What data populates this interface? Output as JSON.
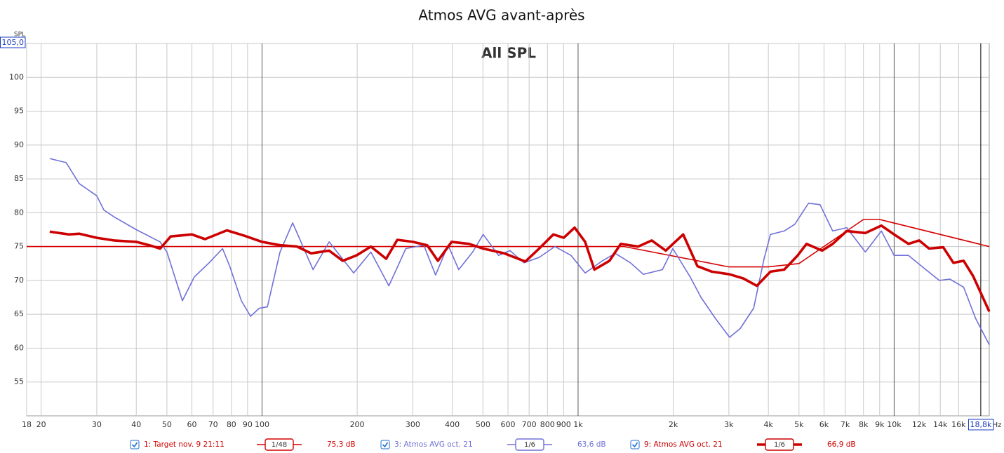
{
  "chart_data": {
    "type": "line",
    "title": "Atmos AVG avant-après",
    "annotation": "All SPL",
    "ylabel": "SPL",
    "xlabel": "Hz",
    "xscale": "log",
    "grid": true,
    "xlim": [
      18,
      20000
    ],
    "ylim": [
      50,
      105
    ],
    "yticks": [
      55,
      60,
      65,
      70,
      75,
      80,
      85,
      90,
      95,
      100,
      {
        "value": 105,
        "label": "105,0"
      }
    ],
    "xticks": [
      18,
      20,
      30,
      40,
      50,
      60,
      70,
      80,
      90,
      100,
      200,
      300,
      400,
      500,
      600,
      700,
      800,
      900,
      {
        "value": 1000,
        "label": "1k"
      },
      {
        "value": 2000,
        "label": "2k"
      },
      {
        "value": 3000,
        "label": "3k"
      },
      {
        "value": 4000,
        "label": "4k"
      },
      {
        "value": 5000,
        "label": "5k"
      },
      {
        "value": 6000,
        "label": "6k"
      },
      {
        "value": 7000,
        "label": "7k"
      },
      {
        "value": 8000,
        "label": "8k"
      },
      {
        "value": 9000,
        "label": "9k"
      },
      {
        "value": 10000,
        "label": "10k"
      },
      {
        "value": 12000,
        "label": "12k"
      },
      {
        "value": 14000,
        "label": "14k"
      },
      {
        "value": 16000,
        "label": "16k"
      },
      {
        "value": 18800,
        "label": "18,8k"
      }
    ],
    "series": [
      {
        "name": "1: Target nov. 9 21:11",
        "smoothing": "1/48",
        "level": "75,3 dB",
        "color": "#d40000",
        "width": 1.6,
        "x": [
          18,
          1400,
          3000,
          4000,
          5000,
          8000,
          9000,
          20000
        ],
        "values": [
          75,
          75,
          72,
          72,
          72.5,
          79,
          79,
          75
        ]
      },
      {
        "name": "3: Atmos AVG oct. 21",
        "smoothing": "1/6",
        "level": "63,6 dB",
        "color": "#7070d8",
        "width": 1.6,
        "x": [
          21.3,
          24,
          26.4,
          30,
          31.6,
          34,
          40,
          47.6,
          50,
          52.5,
          56,
          61,
          68,
          75,
          79,
          86,
          92,
          98,
          104,
          114,
          125,
          145,
          163,
          195,
          221,
          252,
          285,
          325,
          354,
          388,
          419,
          464,
          501,
          560,
          609,
          674,
          753,
          844,
          950,
          1053,
          1194,
          1310,
          1465,
          1609,
          1848,
          1995,
          2264,
          2448,
          2719,
          3016,
          3258,
          3594,
          3873,
          4060,
          4488,
          4850,
          5360,
          5830,
          6390,
          7080,
          8110,
          9110,
          10000,
          11100,
          12600,
          13900,
          15000,
          16600,
          18100,
          20000
        ],
        "values": [
          88.0,
          87.4,
          84.3,
          82.5,
          80.4,
          79.4,
          77.5,
          75.7,
          74.2,
          71.1,
          67.0,
          70.5,
          72.6,
          74.7,
          72.1,
          67.0,
          64.7,
          65.9,
          66.1,
          74.2,
          78.5,
          71.6,
          75.7,
          71.1,
          74.2,
          69.2,
          74.7,
          75.2,
          70.8,
          75.2,
          71.6,
          74.2,
          76.8,
          73.7,
          74.4,
          72.6,
          73.4,
          75.0,
          73.7,
          71.1,
          72.9,
          74.0,
          72.6,
          70.9,
          71.6,
          74.7,
          70.5,
          67.5,
          64.4,
          61.6,
          62.9,
          65.9,
          73.1,
          76.8,
          77.3,
          78.3,
          81.4,
          81.2,
          77.3,
          77.8,
          74.2,
          77.3,
          73.7,
          73.7,
          71.6,
          70.0,
          70.2,
          69.0,
          64.4,
          60.5
        ]
      },
      {
        "name": "9: Atmos AVG oct. 21",
        "smoothing": "1/6",
        "level": "66,9 dB",
        "color": "#cc0000",
        "width": 3.6,
        "x": [
          21.3,
          24.5,
          26.4,
          30,
          34,
          40,
          44,
          47.6,
          51.4,
          60,
          66,
          77.4,
          88,
          100,
          114,
          129,
          143,
          163,
          180,
          199,
          221,
          247,
          268,
          300,
          333,
          360,
          398,
          452,
          501,
          584,
          681,
          753,
          835,
          901,
          975,
          1053,
          1126,
          1257,
          1365,
          1549,
          1711,
          1894,
          2150,
          2387,
          2650,
          3016,
          3331,
          3678,
          4060,
          4488,
          4955,
          5280,
          5920,
          6390,
          7080,
          8110,
          9110,
          10000,
          11100,
          12000,
          12900,
          14300,
          15400,
          16600,
          17800,
          20000
        ],
        "values": [
          77.2,
          76.8,
          76.9,
          76.3,
          75.9,
          75.7,
          75.2,
          74.7,
          76.5,
          76.8,
          76.1,
          77.4,
          76.6,
          75.7,
          75.2,
          75.0,
          74.0,
          74.4,
          72.9,
          73.7,
          75.0,
          73.2,
          76.0,
          75.7,
          75.2,
          72.9,
          75.7,
          75.4,
          74.7,
          74.0,
          72.8,
          74.7,
          76.8,
          76.3,
          77.8,
          75.7,
          71.6,
          72.9,
          75.4,
          75.0,
          75.9,
          74.4,
          76.8,
          72.1,
          71.3,
          70.9,
          70.3,
          69.2,
          71.3,
          71.6,
          73.7,
          75.4,
          74.4,
          75.4,
          77.3,
          77.0,
          78.1,
          76.8,
          75.4,
          75.9,
          74.7,
          74.9,
          72.6,
          72.9,
          70.6,
          65.4
        ]
      }
    ]
  }
}
